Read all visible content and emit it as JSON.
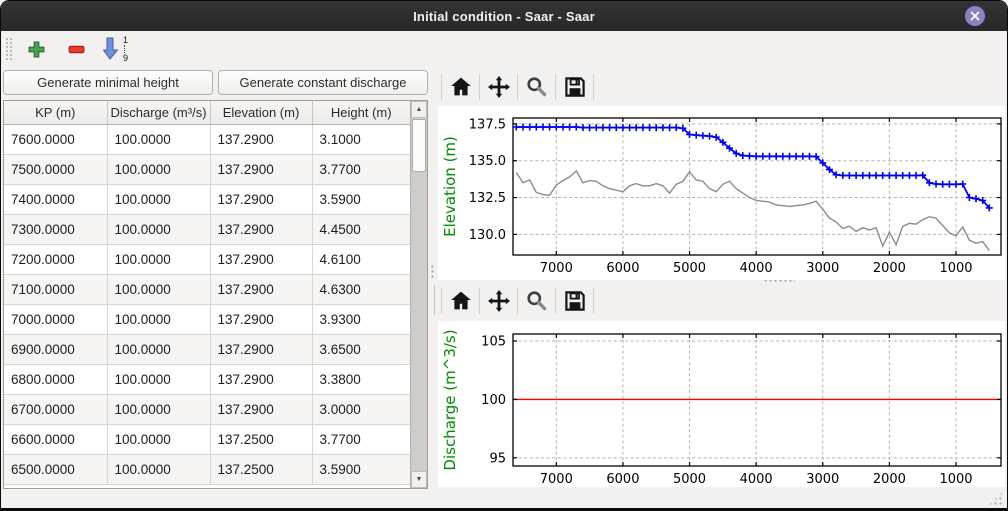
{
  "window": {
    "title": "Initial condition - Saar - Saar"
  },
  "colors": {
    "titlebar": "#2c2c2c",
    "close_button": "#8e80c4",
    "panel_bg": "#f2f1f0",
    "accent_green": "#008c00",
    "water_line": "#0000ee",
    "bottom_line": "#8c8c8c",
    "discharge_line": "#ff0000"
  },
  "toolbar": {
    "add_icon": "add-row",
    "remove_icon": "remove-row",
    "sort_icon": "sort-ascending",
    "sort_top": "1",
    "sort_bottom": "9"
  },
  "buttons": {
    "generate_min_height": "Generate minimal height",
    "generate_const_discharge": "Generate constant discharge"
  },
  "table": {
    "columns": [
      "KP (m)",
      "Discharge (m³/s)",
      "Elevation (m)",
      "Height (m)"
    ],
    "rows": [
      [
        "7600.0000",
        "100.0000",
        "137.2900",
        "3.1000"
      ],
      [
        "7500.0000",
        "100.0000",
        "137.2900",
        "3.7700"
      ],
      [
        "7400.0000",
        "100.0000",
        "137.2900",
        "3.5900"
      ],
      [
        "7300.0000",
        "100.0000",
        "137.2900",
        "4.4500"
      ],
      [
        "7200.0000",
        "100.0000",
        "137.2900",
        "4.6100"
      ],
      [
        "7100.0000",
        "100.0000",
        "137.2900",
        "4.6300"
      ],
      [
        "7000.0000",
        "100.0000",
        "137.2900",
        "3.9300"
      ],
      [
        "6900.0000",
        "100.0000",
        "137.2900",
        "3.6500"
      ],
      [
        "6800.0000",
        "100.0000",
        "137.2900",
        "3.3800"
      ],
      [
        "6700.0000",
        "100.0000",
        "137.2900",
        "3.0000"
      ],
      [
        "6600.0000",
        "100.0000",
        "137.2500",
        "3.7700"
      ],
      [
        "6500.0000",
        "100.0000",
        "137.2500",
        "3.5900"
      ]
    ]
  },
  "mpl_toolbar_icons": [
    "home",
    "pan",
    "zoom",
    "save"
  ],
  "chart_data": [
    {
      "type": "line",
      "ylabel": "Elevation (m)",
      "ylabel_color": "#008c00",
      "xlim": [
        7650,
        325
      ],
      "ylim": [
        128.6,
        137.9
      ],
      "xticks": [
        7000,
        6000,
        5000,
        4000,
        3000,
        2000,
        1000
      ],
      "xtick_labels": [
        "7000",
        "6000",
        "5000",
        "4000",
        "3000",
        "2000",
        "1000"
      ],
      "yticks": [
        130.0,
        132.5,
        135.0,
        137.5
      ],
      "ytick_labels": [
        "130.0",
        "132.5",
        "135.0",
        "137.5"
      ],
      "grid": true,
      "legend": "none",
      "series": [
        {
          "name": "water-surface-elevation",
          "color": "#0000ee",
          "marker": "+",
          "x": [
            7600,
            7500,
            7400,
            7300,
            7200,
            7100,
            7000,
            6900,
            6800,
            6700,
            6600,
            6500,
            6400,
            6300,
            6200,
            6100,
            6000,
            5900,
            5800,
            5700,
            5600,
            5500,
            5400,
            5300,
            5200,
            5100,
            5000,
            4900,
            4800,
            4700,
            4600,
            4500,
            4400,
            4300,
            4200,
            4100,
            4000,
            3900,
            3800,
            3700,
            3600,
            3500,
            3400,
            3300,
            3200,
            3100,
            3000,
            2900,
            2800,
            2700,
            2600,
            2500,
            2400,
            2300,
            2200,
            2100,
            2000,
            1900,
            1800,
            1700,
            1600,
            1500,
            1400,
            1300,
            1200,
            1100,
            1000,
            900,
            800,
            700,
            600,
            500
          ],
          "y": [
            137.29,
            137.29,
            137.29,
            137.29,
            137.29,
            137.29,
            137.29,
            137.29,
            137.29,
            137.29,
            137.25,
            137.25,
            137.25,
            137.25,
            137.25,
            137.25,
            137.25,
            137.25,
            137.25,
            137.25,
            137.25,
            137.25,
            137.25,
            137.25,
            137.25,
            137.2,
            136.78,
            136.74,
            136.7,
            136.67,
            136.6,
            136.25,
            135.85,
            135.5,
            135.35,
            135.32,
            135.3,
            135.3,
            135.3,
            135.3,
            135.3,
            135.3,
            135.3,
            135.3,
            135.3,
            135.28,
            134.85,
            134.4,
            134.05,
            134.0,
            134.0,
            134.0,
            134.0,
            134.0,
            134.0,
            134.0,
            134.0,
            134.0,
            134.0,
            134.0,
            134.0,
            134.02,
            133.5,
            133.42,
            133.4,
            133.4,
            133.4,
            133.42,
            132.5,
            132.42,
            132.3,
            131.8
          ]
        },
        {
          "name": "bottom-elevation",
          "color": "#8c8c8c",
          "marker": null,
          "x": [
            7600,
            7500,
            7400,
            7300,
            7200,
            7100,
            7000,
            6900,
            6800,
            6700,
            6600,
            6500,
            6400,
            6300,
            6200,
            6100,
            6000,
            5900,
            5800,
            5700,
            5600,
            5500,
            5400,
            5300,
            5200,
            5100,
            5000,
            4900,
            4800,
            4700,
            4600,
            4500,
            4400,
            4300,
            4200,
            4100,
            4000,
            3900,
            3800,
            3700,
            3600,
            3500,
            3400,
            3300,
            3200,
            3100,
            3000,
            2900,
            2800,
            2700,
            2600,
            2500,
            2400,
            2300,
            2200,
            2100,
            2000,
            1900,
            1800,
            1700,
            1600,
            1500,
            1400,
            1300,
            1200,
            1100,
            1000,
            900,
            800,
            700,
            600,
            500
          ],
          "y": [
            134.2,
            133.5,
            133.7,
            132.85,
            132.7,
            132.65,
            133.35,
            133.65,
            133.9,
            134.3,
            133.5,
            133.65,
            133.6,
            133.3,
            133.1,
            133.0,
            132.9,
            133.3,
            133.45,
            133.3,
            133.3,
            133.45,
            133.3,
            132.8,
            133.4,
            133.6,
            134.25,
            133.7,
            133.6,
            133.1,
            132.9,
            133.4,
            133.6,
            133.1,
            132.8,
            132.5,
            132.3,
            132.25,
            132.2,
            132.0,
            131.95,
            131.9,
            131.95,
            132.0,
            132.1,
            132.25,
            131.7,
            131.1,
            130.85,
            130.4,
            130.55,
            130.2,
            130.45,
            130.3,
            130.45,
            129.2,
            130.15,
            129.3,
            130.55,
            130.75,
            130.7,
            131.0,
            131.2,
            131.1,
            130.6,
            130.1,
            129.9,
            130.5,
            129.6,
            129.4,
            129.5,
            128.9
          ]
        }
      ]
    },
    {
      "type": "line",
      "ylabel": "Discharge (m^3/s)",
      "ylabel_color": "#008c00",
      "xlim": [
        7650,
        325
      ],
      "ylim": [
        94.3,
        105.6
      ],
      "xticks": [
        7000,
        6000,
        5000,
        4000,
        3000,
        2000,
        1000
      ],
      "xtick_labels": [
        "7000",
        "6000",
        "5000",
        "4000",
        "3000",
        "2000",
        "1000"
      ],
      "yticks": [
        95,
        100,
        105
      ],
      "ytick_labels": [
        "95",
        "100",
        "105"
      ],
      "grid": true,
      "legend": "none",
      "series": [
        {
          "name": "constant-discharge",
          "color": "#ff0000",
          "marker": null,
          "x": [
            7650,
            325
          ],
          "y": [
            100,
            100
          ]
        }
      ]
    }
  ]
}
